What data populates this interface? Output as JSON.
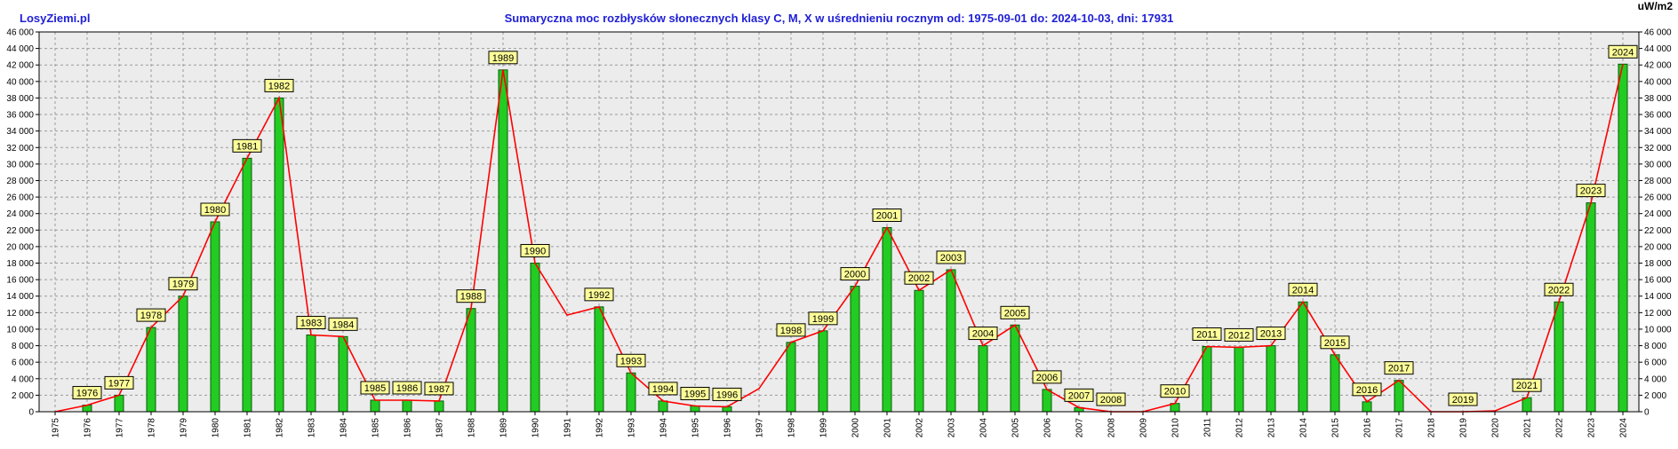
{
  "site": "LosyZiemi.pl",
  "title": "Sumaryczna moc rozbłysków słonecznych klasy C, M, X w uśrednieniu rocznym od: 1975-09-01 do: 2024-10-03, dni: 17931",
  "unit": "uW/m2",
  "colors": {
    "bar": "#22cc22",
    "bar_border": "#0a5a0a",
    "line": "#ff0000",
    "label_fill": "#ffff99",
    "plot_bg": "#ececec",
    "grid": "#9a9a9a",
    "title": "#1f1fd6"
  },
  "chart_data": {
    "type": "bar",
    "title": "Sumaryczna moc rozbłysków słonecznych klasy C, M, X w uśrednieniu rocznym od: 1975-09-01 do: 2024-10-03, dni: 17931",
    "ylabel": "uW/m2",
    "ylim": [
      0,
      46000
    ],
    "yticks": [
      0,
      2000,
      4000,
      6000,
      8000,
      10000,
      12000,
      14000,
      16000,
      18000,
      20000,
      22000,
      24000,
      26000,
      28000,
      30000,
      32000,
      34000,
      36000,
      38000,
      40000,
      42000,
      44000,
      46000
    ],
    "ytick_labels": [
      "0",
      "2 000",
      "4 000",
      "6 000",
      "8 000",
      "10 000",
      "12 000",
      "14 000",
      "16 000",
      "18 000",
      "20 000",
      "22 000",
      "24 000",
      "26 000",
      "28 000",
      "30 000",
      "32 000",
      "34 000",
      "36 000",
      "38 000",
      "40 000",
      "42 000",
      "44 000",
      "46 000"
    ],
    "categories": [
      "1975",
      "1976",
      "1977",
      "1978",
      "1979",
      "1980",
      "1981",
      "1982",
      "1983",
      "1984",
      "1985",
      "1986",
      "1987",
      "1988",
      "1989",
      "1990",
      "1991",
      "1992",
      "1993",
      "1994",
      "1995",
      "1996",
      "1997",
      "1998",
      "1999",
      "2000",
      "2001",
      "2002",
      "2003",
      "2004",
      "2005",
      "2006",
      "2007",
      "2008",
      "2009",
      "2010",
      "2011",
      "2012",
      "2013",
      "2014",
      "2015",
      "2016",
      "2017",
      "2018",
      "2019",
      "2020",
      "2021",
      "2022",
      "2023",
      "2024"
    ],
    "values": [
      0,
      800,
      2000,
      10200,
      14000,
      23000,
      30700,
      38000,
      9300,
      9100,
      1400,
      1400,
      1300,
      12500,
      41400,
      18000,
      0,
      12700,
      4700,
      1300,
      700,
      600,
      0,
      8400,
      9800,
      15200,
      22300,
      14700,
      17200,
      8000,
      10500,
      2700,
      500,
      0,
      0,
      1000,
      7900,
      7800,
      8000,
      13300,
      6900,
      1200,
      3800,
      0,
      0,
      0,
      1700,
      13300,
      25300,
      42100
    ],
    "line_values": [
      0,
      800,
      2000,
      10200,
      14000,
      23000,
      30700,
      38000,
      9300,
      9100,
      1400,
      1400,
      1300,
      12500,
      41400,
      18000,
      11700,
      12700,
      4700,
      1300,
      700,
      600,
      2800,
      8400,
      9800,
      15200,
      22300,
      14700,
      17200,
      8000,
      10500,
      2700,
      500,
      0,
      0,
      1000,
      7900,
      7800,
      8000,
      13300,
      6900,
      1200,
      3800,
      0,
      0,
      100,
      1700,
      13300,
      25300,
      42100
    ],
    "labeled_years": [
      "1976",
      "1977",
      "1978",
      "1979",
      "1980",
      "1981",
      "1982",
      "1983",
      "1984",
      "1985",
      "1986",
      "1987",
      "1988",
      "1989",
      "1990",
      "1992",
      "1993",
      "1994",
      "1995",
      "1996",
      "1998",
      "1999",
      "2000",
      "2001",
      "2002",
      "2003",
      "2004",
      "2005",
      "2006",
      "2007",
      "2008",
      "2010",
      "2011",
      "2012",
      "2013",
      "2014",
      "2015",
      "2016",
      "2017",
      "2019",
      "2021",
      "2022",
      "2023",
      "2024"
    ],
    "grid": true,
    "legend": "none"
  }
}
